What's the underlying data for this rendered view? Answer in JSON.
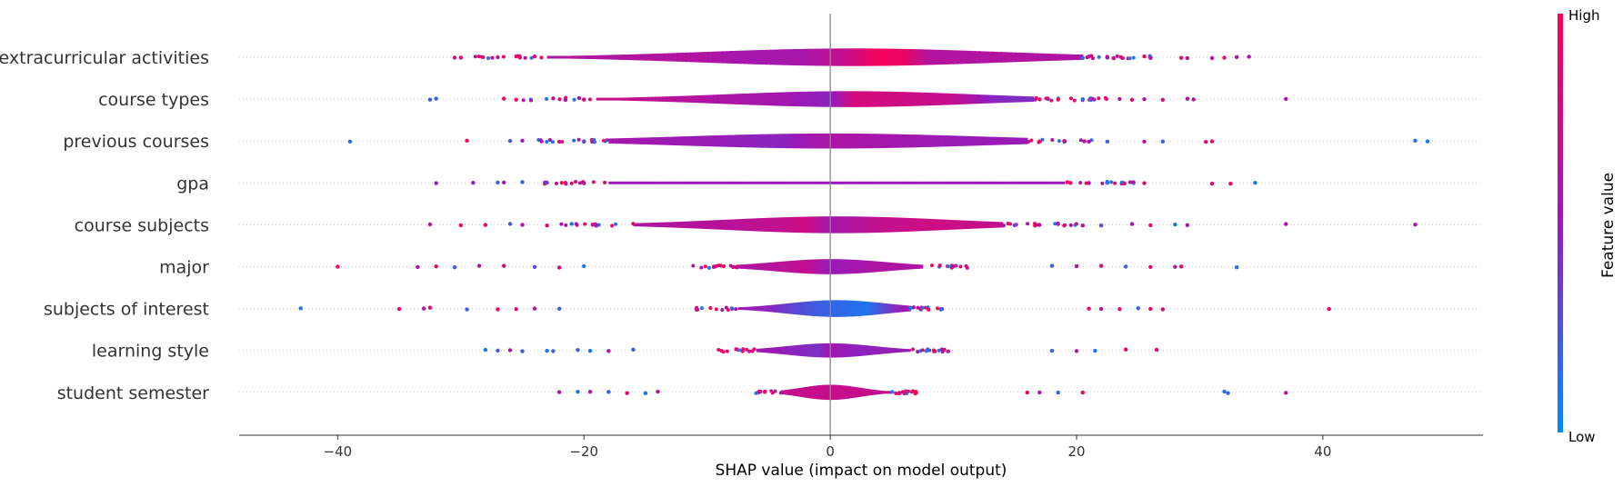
{
  "chart_data": {
    "type": "violin",
    "xlabel": "SHAP value (impact on model output)",
    "xlim": [
      -48,
      53
    ],
    "xticks": [
      {
        "value": -40,
        "label": "−40"
      },
      {
        "value": -20,
        "label": "−20"
      },
      {
        "value": 0,
        "label": "0"
      },
      {
        "value": 20,
        "label": "20"
      },
      {
        "value": 40,
        "label": "40"
      }
    ],
    "colorbar": {
      "title": "Feature value",
      "high_label": "High",
      "low_label": "Low",
      "high_color": "#ff0052",
      "mid_color": "#9a1ab7",
      "low_color": "#008bfb"
    },
    "features": [
      {
        "name": "extracurricular activities",
        "min": -31,
        "max": 34,
        "core_min": -23,
        "core_max": 20.5,
        "peak": 1.8,
        "height": 0.42,
        "spread": 12,
        "colors": [
          [
            -23,
            0.6
          ],
          [
            -12,
            0.62
          ],
          [
            -6,
            0.55
          ],
          [
            -2,
            0.58
          ],
          [
            1,
            0.7
          ],
          [
            4,
            0.95
          ],
          [
            6,
            0.9
          ],
          [
            8,
            0.62
          ],
          [
            20,
            0.6
          ]
        ],
        "extra_points": [
          [
            -30.5,
            0.62
          ],
          [
            -30,
            0.9
          ],
          [
            -27,
            0.6
          ],
          [
            -25.5,
            0.9
          ],
          [
            -24,
            0.85
          ],
          [
            20.5,
            0.1
          ],
          [
            21,
            0.6
          ],
          [
            22.5,
            0.55
          ],
          [
            23,
            0.65
          ],
          [
            25.5,
            0.9
          ],
          [
            26,
            0.6
          ],
          [
            28.5,
            0.9
          ],
          [
            29,
            0.6
          ],
          [
            31,
            0.6
          ],
          [
            32,
            0.85
          ],
          [
            33,
            0.6
          ],
          [
            34,
            0.6
          ]
        ]
      },
      {
        "name": "course types",
        "min": -32.5,
        "max": 37,
        "core_min": -19,
        "core_max": 16.5,
        "peak": 1.5,
        "height": 0.38,
        "spread": 10,
        "colors": [
          [
            -19,
            0.75
          ],
          [
            -10,
            0.6
          ],
          [
            -4,
            0.55
          ],
          [
            0,
            0.45
          ],
          [
            2,
            0.8
          ],
          [
            6,
            0.75
          ],
          [
            10,
            0.7
          ],
          [
            13,
            0.45
          ],
          [
            16.5,
            0.4
          ]
        ],
        "extra_points": [
          [
            -32.5,
            0.2
          ],
          [
            -32,
            0.2
          ],
          [
            -26.5,
            0.9
          ],
          [
            -25.5,
            0.85
          ],
          [
            -22.5,
            0.7
          ],
          [
            -21.5,
            0.6
          ],
          [
            -20,
            0.8
          ],
          [
            17,
            0.9
          ],
          [
            18.5,
            0.9
          ],
          [
            20.5,
            0.1
          ],
          [
            23.5,
            0.6
          ],
          [
            24.5,
            0.9
          ],
          [
            25.5,
            0.6
          ],
          [
            27,
            0.85
          ],
          [
            29,
            0.6
          ],
          [
            29.5,
            0.65
          ],
          [
            37,
            0.6
          ]
        ]
      },
      {
        "name": "previous courses",
        "min": -39,
        "max": 48.5,
        "core_min": -18,
        "core_max": 16,
        "peak": 0,
        "height": 0.36,
        "spread": 12,
        "colors": [
          [
            -18,
            0.55
          ],
          [
            -10,
            0.5
          ],
          [
            -4,
            0.45
          ],
          [
            0,
            0.6
          ],
          [
            5,
            0.55
          ],
          [
            10,
            0.5
          ],
          [
            16,
            0.5
          ]
        ],
        "extra_points": [
          [
            -39,
            0.1
          ],
          [
            -29.5,
            0.9
          ],
          [
            -26,
            0.2
          ],
          [
            -25,
            0.5
          ],
          [
            -23.5,
            0.6
          ],
          [
            -22,
            0.8
          ],
          [
            -20,
            0.3
          ],
          [
            17,
            0.9
          ],
          [
            19,
            0.85
          ],
          [
            21,
            0.6
          ],
          [
            22.5,
            0.2
          ],
          [
            25.5,
            0.6
          ],
          [
            27,
            0.2
          ],
          [
            30.5,
            0.85
          ],
          [
            31,
            0.9
          ],
          [
            47.5,
            0.1
          ],
          [
            48.5,
            0.1
          ]
        ]
      },
      {
        "name": "gpa",
        "min": -32,
        "max": 34.5,
        "core_min": -18,
        "core_max": 19,
        "peak": 0,
        "height": 0.06,
        "spread": 40,
        "colors": [
          [
            -18,
            0.5
          ],
          [
            0,
            0.5
          ],
          [
            19,
            0.5
          ]
        ],
        "extra_points": [
          [
            -32,
            0.5
          ],
          [
            -29,
            0.5
          ],
          [
            -27,
            0.2
          ],
          [
            -26.5,
            0.5
          ],
          [
            -25,
            0.2
          ],
          [
            -23,
            0.3
          ],
          [
            -21.5,
            0.8
          ],
          [
            -20,
            0.6
          ],
          [
            19.5,
            0.9
          ],
          [
            21,
            0.6
          ],
          [
            22.5,
            0.1
          ],
          [
            25.5,
            0.9
          ],
          [
            31,
            0.85
          ],
          [
            32.5,
            0.9
          ],
          [
            34.5,
            0.1
          ]
        ]
      },
      {
        "name": "course subjects",
        "min": -32.5,
        "max": 47.5,
        "core_min": -16,
        "core_max": 14,
        "peak": 0.5,
        "height": 0.4,
        "spread": 9,
        "colors": [
          [
            -16,
            0.6
          ],
          [
            -8,
            0.65
          ],
          [
            -4,
            0.7
          ],
          [
            -2,
            0.75
          ],
          [
            0,
            0.55
          ],
          [
            4,
            0.7
          ],
          [
            8,
            0.75
          ],
          [
            14,
            0.7
          ]
        ],
        "extra_points": [
          [
            -32.5,
            0.6
          ],
          [
            -30,
            0.9
          ],
          [
            -28,
            0.85
          ],
          [
            -26,
            0.2
          ],
          [
            -25,
            0.6
          ],
          [
            -23,
            0.8
          ],
          [
            -21,
            0.1
          ],
          [
            -19,
            0.6
          ],
          [
            15,
            0.2
          ],
          [
            17,
            0.6
          ],
          [
            19,
            0.85
          ],
          [
            20.5,
            0.7
          ],
          [
            22,
            0.3
          ],
          [
            24.5,
            0.6
          ],
          [
            26,
            0.85
          ],
          [
            28,
            0.1
          ],
          [
            29,
            0.6
          ],
          [
            37,
            0.6
          ],
          [
            47.5,
            0.6
          ]
        ]
      },
      {
        "name": "major",
        "min": -40,
        "max": 33,
        "core_min": -7.5,
        "core_max": 7.5,
        "peak": 0,
        "height": 0.36,
        "spread": 4.5,
        "colors": [
          [
            -7.5,
            0.6
          ],
          [
            -4,
            0.65
          ],
          [
            -2,
            0.7
          ],
          [
            0,
            0.5
          ],
          [
            2,
            0.55
          ],
          [
            4,
            0.6
          ],
          [
            7.5,
            0.6
          ]
        ],
        "extra_points": [
          [
            -40,
            0.9
          ],
          [
            -33.5,
            0.6
          ],
          [
            -32,
            0.9
          ],
          [
            -30.5,
            0.2
          ],
          [
            -28.5,
            0.6
          ],
          [
            -26.5,
            0.8
          ],
          [
            -24,
            0.3
          ],
          [
            -22,
            0.9
          ],
          [
            -20,
            0.1
          ],
          [
            18,
            0.2
          ],
          [
            20,
            0.6
          ],
          [
            22,
            0.9
          ],
          [
            24,
            0.2
          ],
          [
            26,
            0.85
          ],
          [
            28,
            0.6
          ],
          [
            28.5,
            0.9
          ],
          [
            33,
            0.1
          ]
        ]
      },
      {
        "name": "subjects of interest",
        "min": -43,
        "max": 40.5,
        "core_min": -7.5,
        "core_max": 6.5,
        "peak": 0.5,
        "height": 0.4,
        "spread": 4,
        "colors": [
          [
            -7.5,
            0.5
          ],
          [
            -5,
            0.45
          ],
          [
            -3,
            0.3
          ],
          [
            -1,
            0.2
          ],
          [
            1,
            0.15
          ],
          [
            3,
            0.1
          ],
          [
            5,
            0.4
          ],
          [
            6.5,
            0.55
          ]
        ],
        "extra_points": [
          [
            -43,
            0.1
          ],
          [
            -35,
            0.9
          ],
          [
            -33,
            0.6
          ],
          [
            -32.5,
            0.85
          ],
          [
            -29.5,
            0.2
          ],
          [
            -27,
            0.9
          ],
          [
            -25.5,
            0.85
          ],
          [
            -24,
            0.6
          ],
          [
            -22,
            0.2
          ],
          [
            21,
            0.9
          ],
          [
            22,
            0.6
          ],
          [
            23.5,
            0.85
          ],
          [
            25,
            0.2
          ],
          [
            26,
            0.9
          ],
          [
            27,
            0.85
          ],
          [
            40.5,
            0.9
          ]
        ]
      },
      {
        "name": "learning style",
        "min": -28,
        "max": 26.5,
        "core_min": -6,
        "core_max": 6.5,
        "peak": 0,
        "height": 0.34,
        "spread": 3.5,
        "colors": [
          [
            -6,
            0.55
          ],
          [
            -3,
            0.45
          ],
          [
            -1,
            0.4
          ],
          [
            0,
            0.55
          ],
          [
            2,
            0.45
          ],
          [
            6.5,
            0.5
          ]
        ],
        "extra_points": [
          [
            -28,
            0.1
          ],
          [
            -27,
            0.2
          ],
          [
            -26,
            0.6
          ],
          [
            -25,
            0.2
          ],
          [
            -23,
            0.1
          ],
          [
            -22.5,
            0.2
          ],
          [
            -20.5,
            0.2
          ],
          [
            -19.5,
            0.1
          ],
          [
            -18,
            0.6
          ],
          [
            -16,
            0.2
          ],
          [
            18,
            0.2
          ],
          [
            20,
            0.6
          ],
          [
            21.5,
            0.1
          ],
          [
            24,
            0.9
          ],
          [
            26.5,
            0.85
          ]
        ]
      },
      {
        "name": "student semester",
        "min": -22,
        "max": 37,
        "core_min": -4,
        "core_max": 5,
        "peak": 0,
        "height": 0.36,
        "spread": 2.4,
        "colors": [
          [
            -4,
            0.7
          ],
          [
            0,
            0.72
          ],
          [
            5,
            0.7
          ]
        ],
        "extra_points": [
          [
            -22,
            0.6
          ],
          [
            -20.5,
            0.1
          ],
          [
            -19.5,
            0.6
          ],
          [
            -18,
            0.2
          ],
          [
            -16.5,
            0.9
          ],
          [
            -15,
            0.1
          ],
          [
            -14,
            0.6
          ],
          [
            16,
            0.9
          ],
          [
            17,
            0.6
          ],
          [
            18.5,
            0.2
          ],
          [
            20.5,
            0.9
          ],
          [
            32,
            0.1
          ],
          [
            32.3,
            0.2
          ],
          [
            37,
            0.6
          ]
        ]
      }
    ]
  }
}
